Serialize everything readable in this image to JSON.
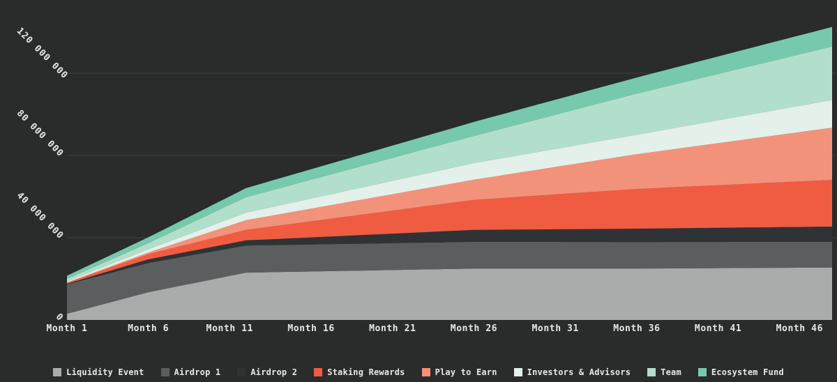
{
  "page": {
    "background": "#2a2b2b",
    "text_color": "#e7e9e9"
  },
  "chart_data": {
    "type": "area",
    "stacked": true,
    "title": "",
    "xlabel": "",
    "ylabel": "",
    "grid": {
      "show": true,
      "color": "#3f4141"
    },
    "legend": {
      "position": "bottom"
    },
    "x_axis": {
      "unit": "month",
      "range_months": [
        1,
        48
      ],
      "tick_months": [
        1,
        6,
        11,
        16,
        21,
        26,
        31,
        36,
        41,
        46
      ],
      "tick_labels": [
        "Month 1",
        "Month 6",
        "Month 11",
        "Month 16",
        "Month 21",
        "Month 26",
        "Month 31",
        "Month 36",
        "Month 41",
        "Month 46"
      ]
    },
    "y_axis": {
      "tick_values": [
        0,
        40000000,
        80000000,
        120000000
      ],
      "tick_labels": [
        "0",
        "40 000 000",
        "80 000 000",
        "120 000 000"
      ],
      "ylim": [
        0,
        145000000
      ]
    },
    "anchor_months": [
      1,
      6,
      12,
      26,
      36,
      48
    ],
    "series": [
      {
        "name": "Liquidity Event",
        "color": "#a8acab",
        "values_millions": [
          3.0,
          13.5,
          23.0,
          25.0,
          25.0,
          25.5
        ]
      },
      {
        "name": "Airdrop 1",
        "color": "#5a5e5f",
        "values_millions": [
          14.3,
          14.2,
          13.2,
          13.0,
          12.9,
          12.5
        ]
      },
      {
        "name": "Airdrop 2",
        "color": "#2f3335",
        "values_millions": [
          0.3,
          1.8,
          2.5,
          5.8,
          6.5,
          7.4
        ]
      },
      {
        "name": "Staking Rewards",
        "color": "#f05c41",
        "values_millions": [
          0.4,
          2.5,
          5.1,
          14.6,
          19.3,
          22.7
        ]
      },
      {
        "name": "Play to Earn",
        "color": "#f2927a",
        "values_millions": [
          0.2,
          0.8,
          4.7,
          9.8,
          16.9,
          25.4
        ]
      },
      {
        "name": "Investors & Advisors",
        "color": "#e4f0ea",
        "values_millions": [
          0.6,
          1.6,
          3.7,
          8.1,
          9.5,
          13.5
        ]
      },
      {
        "name": "Team",
        "color": "#b2dfcc",
        "values_millions": [
          1.2,
          3.0,
          7.5,
          13.2,
          20.0,
          26.0
        ]
      },
      {
        "name": "Ecosystem Fund",
        "color": "#77c9ad",
        "values_millions": [
          1.5,
          2.8,
          4.4,
          6.8,
          7.8,
          9.5
        ]
      }
    ]
  }
}
